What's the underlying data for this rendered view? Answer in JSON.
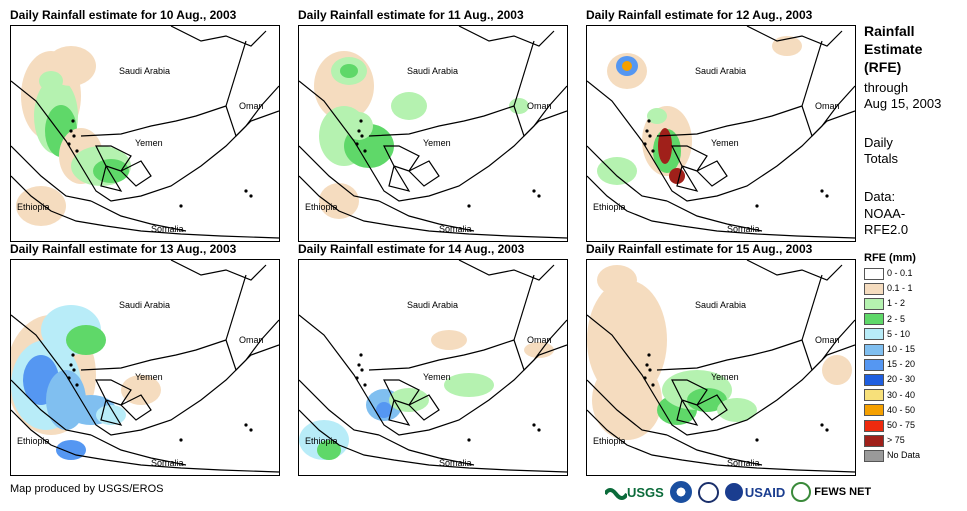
{
  "panels": [
    {
      "title": "Daily Rainfall estimate for 10 Aug., 2003"
    },
    {
      "title": "Daily Rainfall estimate for 11 Aug., 2003"
    },
    {
      "title": "Daily Rainfall estimate for 12 Aug., 2003"
    },
    {
      "title": "Daily Rainfall estimate for 13 Aug., 2003"
    },
    {
      "title": "Daily Rainfall estimate for 14 Aug., 2003"
    },
    {
      "title": "Daily Rainfall estimate for 15 Aug., 2003"
    }
  ],
  "map_labels": {
    "saudi": "Saudi Arabia",
    "oman": "Oman",
    "yemen": "Yemen",
    "ethiopia": "Ethiopia",
    "somalia": "Somalia"
  },
  "legend": {
    "title_lines": [
      "Rainfall",
      "Estimate",
      "(RFE)"
    ],
    "through": "through",
    "date": "Aug 15, 2003",
    "daily": "Daily",
    "totals": "Totals",
    "data_label": "Data:",
    "source1": "NOAA-",
    "source2": "RFE2.0",
    "rfe_header": "RFE (mm)",
    "classes": [
      {
        "label": "0 - 0.1",
        "color": "#ffffff"
      },
      {
        "label": "0.1 - 1",
        "color": "#f5dcbf"
      },
      {
        "label": "1 - 2",
        "color": "#b5f2b0"
      },
      {
        "label": "2 - 5",
        "color": "#5fd869"
      },
      {
        "label": "5 - 10",
        "color": "#b8ecf8"
      },
      {
        "label": "10 - 15",
        "color": "#80bff0"
      },
      {
        "label": "15 - 20",
        "color": "#5597f2"
      },
      {
        "label": "20 - 30",
        "color": "#1f5fe0"
      },
      {
        "label": "30 - 40",
        "color": "#f7e07a"
      },
      {
        "label": "40 - 50",
        "color": "#f5a000"
      },
      {
        "label": "50 - 75",
        "color": "#ee2a0e"
      },
      {
        "label": "> 75",
        "color": "#a0201a"
      },
      {
        "label": "No Data",
        "color": "#9a9a9a"
      }
    ]
  },
  "credit": "Map produced by USGS/EROS",
  "logos": {
    "usgs": "USGS",
    "usaid": "USAID",
    "fews": "FEWS NET"
  }
}
